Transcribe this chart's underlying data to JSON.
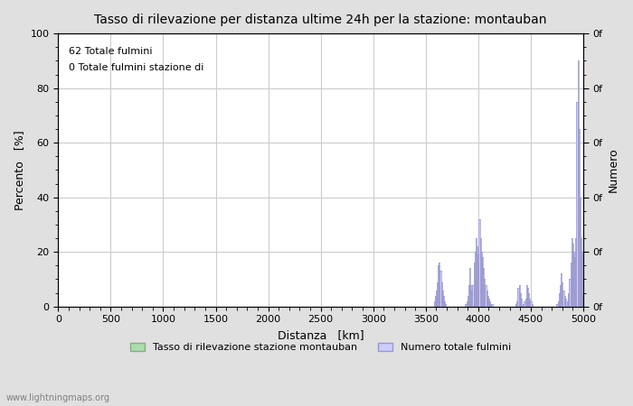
{
  "title": "Tasso di rilevazione per distanza ultime 24h per la stazione: montauban",
  "xlabel": "Distanza   [km]",
  "ylabel_left": "Percento   [%]",
  "ylabel_right": "Numero",
  "annotation_line1": "62 Totale fulmini",
  "annotation_line2": "0 Totale fulmini stazione di",
  "watermark": "www.lightningmaps.org",
  "xlim": [
    0,
    5000
  ],
  "ylim": [
    0,
    100
  ],
  "xticks": [
    0,
    500,
    1000,
    1500,
    2000,
    2500,
    3000,
    3500,
    4000,
    4500,
    5000
  ],
  "yticks_left": [
    0,
    20,
    40,
    60,
    80,
    100
  ],
  "yticks_right_positions": [
    0,
    20,
    40,
    60,
    80,
    100
  ],
  "yticks_right_labels": [
    "0f",
    "0f",
    "0f",
    "0f",
    "0f",
    "0f"
  ],
  "bg_color": "#e0e0e0",
  "plot_bg_color": "#ffffff",
  "bar_edge_color": "#9999cc",
  "fill_color": "#ccccff",
  "legend_label_green": "Tasso di rilevazione stazione montauban",
  "legend_label_blue": "Numero totale fulmini",
  "legend_color_green": "#aaddaa",
  "legend_color_blue": "#ccccff",
  "bar_data": [
    [
      3580,
      2
    ],
    [
      3590,
      4
    ],
    [
      3600,
      6
    ],
    [
      3610,
      9
    ],
    [
      3620,
      15
    ],
    [
      3630,
      16
    ],
    [
      3640,
      13
    ],
    [
      3650,
      9
    ],
    [
      3660,
      6
    ],
    [
      3670,
      4
    ],
    [
      3680,
      2
    ],
    [
      3690,
      1
    ],
    [
      3880,
      1
    ],
    [
      3890,
      2
    ],
    [
      3900,
      4
    ],
    [
      3910,
      8
    ],
    [
      3920,
      14
    ],
    [
      3930,
      8
    ],
    [
      3940,
      6
    ],
    [
      3950,
      8
    ],
    [
      3960,
      16
    ],
    [
      3970,
      20
    ],
    [
      3980,
      25
    ],
    [
      3990,
      22
    ],
    [
      4000,
      19
    ],
    [
      4010,
      32
    ],
    [
      4020,
      25
    ],
    [
      4030,
      20
    ],
    [
      4040,
      18
    ],
    [
      4050,
      14
    ],
    [
      4060,
      10
    ],
    [
      4070,
      8
    ],
    [
      4080,
      6
    ],
    [
      4090,
      4
    ],
    [
      4100,
      3
    ],
    [
      4110,
      2
    ],
    [
      4120,
      1
    ],
    [
      4130,
      1
    ],
    [
      4360,
      1
    ],
    [
      4370,
      2
    ],
    [
      4380,
      7
    ],
    [
      4390,
      8
    ],
    [
      4400,
      5
    ],
    [
      4410,
      3
    ],
    [
      4430,
      1
    ],
    [
      4440,
      2
    ],
    [
      4450,
      3
    ],
    [
      4460,
      8
    ],
    [
      4470,
      7
    ],
    [
      4480,
      5
    ],
    [
      4490,
      3
    ],
    [
      4500,
      2
    ],
    [
      4510,
      1
    ],
    [
      4750,
      1
    ],
    [
      4760,
      2
    ],
    [
      4770,
      5
    ],
    [
      4780,
      8
    ],
    [
      4790,
      12
    ],
    [
      4800,
      9
    ],
    [
      4810,
      6
    ],
    [
      4820,
      4
    ],
    [
      4830,
      3
    ],
    [
      4850,
      2
    ],
    [
      4860,
      5
    ],
    [
      4870,
      10
    ],
    [
      4880,
      16
    ],
    [
      4890,
      25
    ],
    [
      4900,
      23
    ],
    [
      4910,
      20
    ],
    [
      4920,
      18
    ],
    [
      4930,
      25
    ],
    [
      4940,
      75
    ],
    [
      4950,
      90
    ],
    [
      4960,
      65
    ],
    [
      4970,
      40
    ],
    [
      4980,
      25
    ],
    [
      4990,
      20
    ],
    [
      5000,
      5
    ]
  ]
}
